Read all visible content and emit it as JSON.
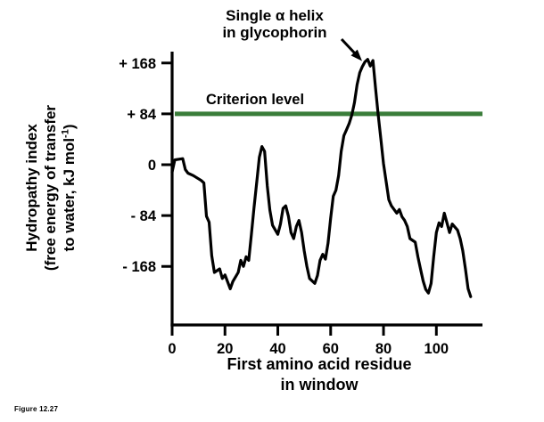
{
  "figure_caption": "Figure 12.27",
  "chart_data": {
    "type": "line",
    "title": "",
    "annotation": {
      "line1": "Single α helix",
      "line2": "in glycophorin"
    },
    "criterion": {
      "label": "Criterion level",
      "value": 84
    },
    "xlabel": {
      "line1": "First amino acid residue",
      "line2": "in window"
    },
    "ylabel": {
      "line1": "Hydropathy index",
      "line2": "(free energy of transfer",
      "line3_pre": "to water, kJ mol",
      "line3_sup": "-1",
      "line3_post": ")"
    },
    "yticks": [
      {
        "value": 168,
        "label": "+ 168"
      },
      {
        "value": 84,
        "label": "+ 84"
      },
      {
        "value": 0,
        "label": "0"
      },
      {
        "value": -84,
        "label": "- 84"
      },
      {
        "value": -168,
        "label": "- 168"
      }
    ],
    "xticks": [
      {
        "value": 0,
        "label": "0"
      },
      {
        "value": 20,
        "label": "20"
      },
      {
        "value": 40,
        "label": "40"
      },
      {
        "value": 60,
        "label": "60"
      },
      {
        "value": 80,
        "label": "80"
      },
      {
        "value": 100,
        "label": "100"
      }
    ],
    "xlim": [
      0,
      117
    ],
    "ylim": [
      -230,
      190
    ],
    "grid": false,
    "legend": "none",
    "colors": {
      "trace": "#000000",
      "criterion": "#3a7d3a"
    },
    "series": [
      {
        "name": "hydropathy",
        "x": [
          0,
          1,
          4,
          5,
          6,
          8,
          11,
          12,
          13,
          14,
          15,
          16,
          18,
          19,
          20,
          22,
          23,
          25,
          26,
          27,
          28,
          29,
          30,
          31,
          32,
          33,
          34,
          35,
          36,
          37,
          38,
          40,
          41,
          42,
          43,
          44,
          45,
          46,
          47,
          48,
          49,
          50,
          51,
          52,
          54,
          55,
          56,
          57,
          58,
          59,
          60,
          61,
          62,
          63,
          64,
          65,
          66,
          67,
          68,
          69,
          70,
          71,
          72,
          73,
          74,
          75,
          76,
          77,
          78,
          79,
          80,
          81,
          82,
          83,
          84,
          85,
          86,
          87,
          88,
          89,
          90,
          92,
          93,
          94,
          95,
          96,
          97,
          98,
          99,
          100,
          101,
          102,
          103,
          104,
          105,
          106,
          108,
          109,
          110,
          111,
          112,
          113
        ],
        "y": [
          -12,
          8,
          10,
          -8,
          -14,
          -18,
          -26,
          -30,
          -85,
          -95,
          -150,
          -178,
          -172,
          -188,
          -182,
          -205,
          -193,
          -178,
          -158,
          -168,
          -152,
          -158,
          -115,
          -70,
          -30,
          12,
          30,
          22,
          -35,
          -75,
          -100,
          -115,
          -98,
          -72,
          -68,
          -85,
          -112,
          -122,
          -102,
          -92,
          -112,
          -142,
          -168,
          -188,
          -196,
          -183,
          -158,
          -148,
          -156,
          -130,
          -88,
          -52,
          -42,
          -18,
          22,
          48,
          58,
          68,
          82,
          102,
          132,
          152,
          162,
          170,
          174,
          163,
          172,
          125,
          82,
          42,
          2,
          -28,
          -58,
          -68,
          -74,
          -80,
          -74,
          -86,
          -92,
          -102,
          -122,
          -128,
          -152,
          -172,
          -192,
          -206,
          -212,
          -196,
          -152,
          -112,
          -96,
          -102,
          -80,
          -96,
          -112,
          -98,
          -108,
          -122,
          -142,
          -172,
          -205,
          -218
        ]
      }
    ]
  }
}
